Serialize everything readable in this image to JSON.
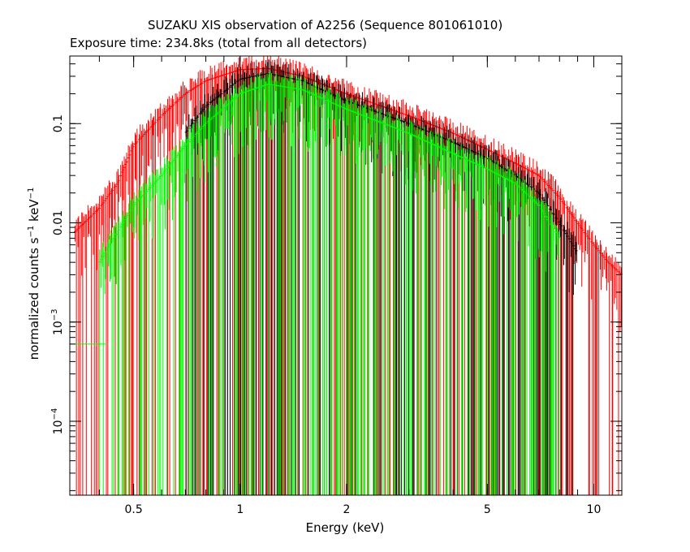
{
  "title": "SUZAKU XIS observation of A2256 (Sequence 801061010)",
  "subtitle": "Exposure time: 234.8ks (total from all detectors)",
  "colors": {
    "frame": "#000000",
    "series_red": "#ff0000",
    "series_green": "#00ff00",
    "series_black": "#000000"
  },
  "chart_data": {
    "type": "scatter",
    "title": "SUZAKU XIS observation of A2256 (Sequence 801061010)",
    "subtitle": "Exposure time: 234.8ks (total from all detectors)",
    "xlabel": "Energy (keV)",
    "ylabel_parts": {
      "a": "normalized counts s",
      "a_sup": "−1",
      "b": " keV",
      "b_sup": "−1"
    },
    "xscale": "log",
    "yscale": "log",
    "xlim": [
      0.33,
      12
    ],
    "ylim": [
      1.8e-05,
      0.48
    ],
    "grid": false,
    "legend": "none",
    "x_ticks": [
      {
        "value": 0.5,
        "label": "0.5"
      },
      {
        "value": 1,
        "label": "1"
      },
      {
        "value": 2,
        "label": "2"
      },
      {
        "value": 5,
        "label": "5"
      },
      {
        "value": 10,
        "label": "10"
      }
    ],
    "y_ticks": [
      {
        "value": 0.0001,
        "base": "10",
        "exp": "−4"
      },
      {
        "value": 0.001,
        "base": "10",
        "exp": "−3"
      },
      {
        "value": 0.01,
        "base": "0.01",
        "exp": ""
      },
      {
        "value": 0.1,
        "base": "0.1",
        "exp": ""
      }
    ],
    "series": [
      {
        "color": "#ff0000",
        "envelope": {
          "x": [
            0.34,
            0.4,
            0.45,
            0.5,
            0.6,
            0.7,
            0.8,
            1.0,
            1.2,
            1.5,
            2.0,
            3.0,
            4.0,
            5.0,
            6.0,
            7.0,
            8.0,
            9.0,
            10.0,
            11.0,
            12.0
          ],
          "y": [
            0.008,
            0.014,
            0.025,
            0.06,
            0.12,
            0.2,
            0.27,
            0.35,
            0.36,
            0.3,
            0.2,
            0.12,
            0.08,
            0.055,
            0.04,
            0.03,
            0.018,
            0.01,
            0.006,
            0.004,
            0.003
          ]
        }
      },
      {
        "color": "#000000",
        "envelope": {
          "x": [
            0.7,
            0.8,
            1.0,
            1.2,
            1.5,
            2.0,
            3.0,
            4.0,
            5.0,
            6.0,
            7.0,
            8.0,
            9.0
          ],
          "y": [
            0.08,
            0.15,
            0.28,
            0.32,
            0.27,
            0.17,
            0.1,
            0.065,
            0.045,
            0.03,
            0.02,
            0.01,
            0.005
          ]
        }
      },
      {
        "color": "#00ff00",
        "envelope": {
          "x": [
            0.4,
            0.5,
            0.6,
            0.7,
            0.8,
            1.0,
            1.2,
            1.5,
            2.0,
            3.0,
            4.0,
            5.0,
            6.0,
            7.0,
            8.0
          ],
          "y": [
            0.004,
            0.015,
            0.03,
            0.06,
            0.1,
            0.2,
            0.25,
            0.22,
            0.14,
            0.08,
            0.05,
            0.035,
            0.025,
            0.015,
            0.007
          ]
        },
        "low_energy_bin": {
          "x": [
            0.33,
            0.42
          ],
          "y": 0.0006
        }
      }
    ]
  }
}
